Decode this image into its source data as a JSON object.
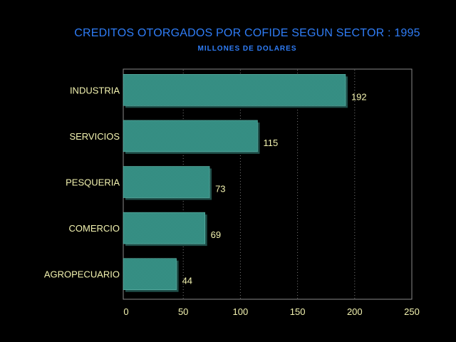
{
  "chart_data": {
    "type": "bar",
    "orientation": "horizontal",
    "title": "CREDITOS OTORGADOS POR COFIDE SEGUN SECTOR : 1995",
    "subtitle": "MILLONES DE DOLARES",
    "categories": [
      "INDUSTRIA",
      "SERVICIOS",
      "PESQUERIA",
      "COMERCIO",
      "AGROPECUARIO"
    ],
    "values": [
      192,
      115,
      73,
      69,
      44
    ],
    "data_labels": [
      "192",
      "115",
      "73",
      "69",
      "44"
    ],
    "xlim": [
      0,
      250
    ],
    "xticks": [
      0,
      50,
      100,
      150,
      200,
      250
    ],
    "xtick_labels": [
      "0",
      "50",
      "100",
      "150",
      "200",
      "250"
    ],
    "grid": "vertical dotted",
    "legend": "none",
    "colors": {
      "background": "#000000",
      "bar_fill": "#3b9b8f",
      "bar_shadow": "#1f4f4a",
      "title": "#2f7df7",
      "labels": "#f3f3b0",
      "axis": "#8a8a8a"
    }
  }
}
